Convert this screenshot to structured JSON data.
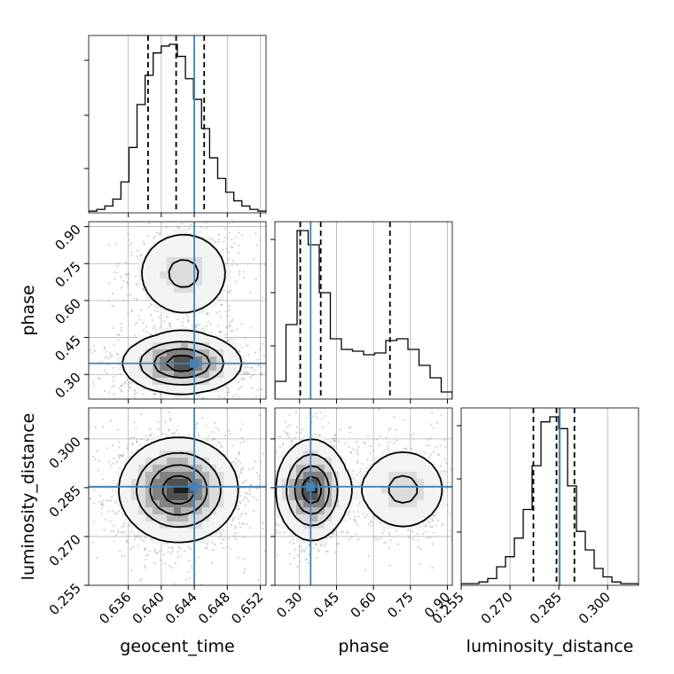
{
  "chart_data": {
    "type": "corner",
    "params": [
      {
        "name": "geocent_time",
        "range": [
          0.6312,
          0.6527
        ],
        "ticks": [
          0.636,
          0.64,
          0.644,
          0.648,
          0.652
        ],
        "tick_labels": [
          "0.636",
          "0.640",
          "0.644",
          "0.648",
          "0.652"
        ],
        "truth": 0.644,
        "quantiles": [
          0.6384,
          0.6418,
          0.6452
        ]
      },
      {
        "name": "phase",
        "range": [
          0.2,
          0.92
        ],
        "ticks": [
          0.3,
          0.45,
          0.6,
          0.75,
          0.9
        ],
        "tick_labels": [
          "0.30",
          "0.45",
          "0.60",
          "0.75",
          "0.90"
        ],
        "truth": 0.345,
        "quantiles": [
          0.303,
          0.386,
          0.667
        ]
      },
      {
        "name": "luminosity_distance",
        "range": [
          0.255,
          0.3095
        ],
        "ticks": [
          0.255,
          0.27,
          0.285,
          0.3
        ],
        "tick_labels": [
          "0.255",
          "0.270",
          "0.285",
          "0.300"
        ],
        "truth": 0.2853,
        "quantiles": [
          0.2772,
          0.2843,
          0.2898
        ]
      }
    ],
    "histograms": [
      {
        "param": "geocent_time",
        "values": [
          1,
          2,
          4,
          8,
          18,
          38,
          63,
          80,
          93,
          97,
          98,
          91,
          78,
          66,
          49,
          32,
          20,
          12,
          7,
          4,
          2,
          1
        ]
      },
      {
        "param": "phase",
        "values": [
          10,
          42,
          95,
          87,
          60,
          34,
          28,
          27,
          25,
          26,
          33,
          34,
          28,
          19,
          12,
          4
        ]
      },
      {
        "param": "luminosity_distance",
        "values": [
          1,
          1,
          2,
          4,
          11,
          17,
          28,
          45,
          71,
          97,
          100,
          93,
          59,
          32,
          21,
          10,
          5,
          2,
          1,
          1
        ]
      }
    ],
    "density_2d": [
      {
        "x": "geocent_time",
        "y": "phase",
        "modes": [
          {
            "x": 0.6425,
            "y": 0.345,
            "sx": 0.0035,
            "sy": 0.06,
            "w": 0.85
          },
          {
            "x": 0.6427,
            "y": 0.71,
            "sx": 0.0032,
            "sy": 0.1,
            "w": 0.35
          }
        ]
      },
      {
        "x": "geocent_time",
        "y": "luminosity_distance",
        "modes": [
          {
            "x": 0.6421,
            "y": 0.2843,
            "sx": 0.0035,
            "sy": 0.0078,
            "w": 1.0
          }
        ]
      },
      {
        "x": "phase",
        "y": "luminosity_distance",
        "modes": [
          {
            "x": 0.35,
            "y": 0.2843,
            "sx": 0.07,
            "sy": 0.0075,
            "w": 0.85
          },
          {
            "x": 0.72,
            "y": 0.2845,
            "sx": 0.1,
            "sy": 0.0072,
            "w": 0.35
          }
        ]
      }
    ],
    "contour_levels": [
      "0.118",
      "0.393",
      "0.675",
      "0.865"
    ],
    "truth_color": "#4682b4",
    "quantile_style": "dashed",
    "title": "",
    "grid": true
  }
}
